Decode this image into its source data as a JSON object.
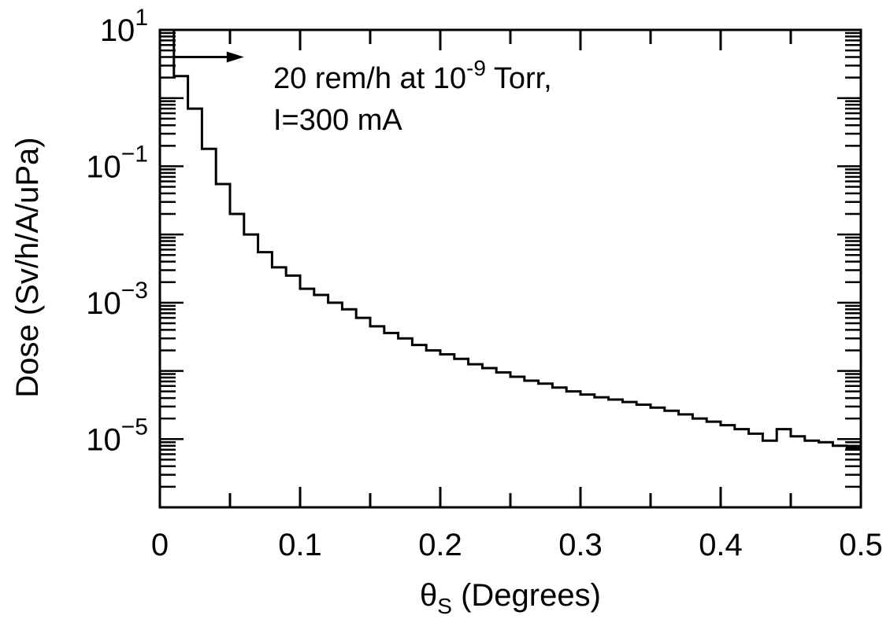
{
  "chart_data": {
    "type": "line",
    "step": true,
    "xlabel": "θ",
    "xlabel_sub": "S",
    "xlabel_units": "(Degrees)",
    "ylabel": "Dose  (Sv/h/A/uPa)",
    "xlim": [
      0,
      0.5
    ],
    "ylim": [
      1e-06,
      10
    ],
    "yscale": "log",
    "x_ticks": [
      {
        "value": 0,
        "label": "0"
      },
      {
        "value": 0.1,
        "label": "0.1"
      },
      {
        "value": 0.2,
        "label": "0.2"
      },
      {
        "value": 0.3,
        "label": "0.3"
      },
      {
        "value": 0.4,
        "label": "0.4"
      },
      {
        "value": 0.5,
        "label": "0.5"
      }
    ],
    "y_ticks": [
      {
        "value": 10,
        "base": "10",
        "exp": "1"
      },
      {
        "value": 0.1,
        "base": "10",
        "exp": "−1"
      },
      {
        "value": 0.001,
        "base": "10",
        "exp": "−3"
      },
      {
        "value": 1e-05,
        "base": "10",
        "exp": "−5"
      }
    ],
    "series": [
      {
        "bin_width": 0.01,
        "x": [
          0,
          0.01,
          0.02,
          0.03,
          0.04,
          0.05,
          0.06,
          0.07,
          0.08,
          0.09,
          0.1,
          0.11,
          0.12,
          0.13,
          0.14,
          0.15,
          0.16,
          0.17,
          0.18,
          0.19,
          0.2,
          0.21,
          0.22,
          0.23,
          0.24,
          0.25,
          0.26,
          0.27,
          0.28,
          0.29,
          0.3,
          0.31,
          0.32,
          0.33,
          0.34,
          0.35,
          0.36,
          0.37,
          0.38,
          0.39,
          0.4,
          0.41,
          0.42,
          0.43,
          0.44,
          0.45,
          0.46,
          0.47,
          0.48,
          0.49
        ],
        "values": [
          10,
          2.1,
          0.7,
          0.18,
          0.055,
          0.02,
          0.01,
          0.0055,
          0.0033,
          0.0025,
          0.0016,
          0.0013,
          0.001,
          0.0008,
          0.0006,
          0.00045,
          0.00036,
          0.0003,
          0.00024,
          0.0002,
          0.000175,
          0.00015,
          0.000125,
          0.00011,
          9.5e-05,
          8.2e-05,
          7.2e-05,
          6.5e-05,
          5.7e-05,
          5e-05,
          4.5e-05,
          4.1e-05,
          3.8e-05,
          3.5e-05,
          3.2e-05,
          2.9e-05,
          2.6e-05,
          2.3e-05,
          2e-05,
          1.8e-05,
          1.6e-05,
          1.4e-05,
          1.2e-05,
          9.5e-06,
          1.4e-05,
          1.1e-05,
          9.5e-06,
          9e-06,
          8e-06,
          7.5e-06
        ]
      }
    ],
    "annotation": {
      "line1_prefix": "20 rem/h at 10",
      "line1_exp": "-9",
      "line1_suffix": " Torr,",
      "line2": "I=300 mA",
      "arrow_from_x": 0.01,
      "arrow_to_x": 0.06,
      "arrow_y": 4
    },
    "grid": false,
    "frame": "box with inward ticks on all sides"
  }
}
